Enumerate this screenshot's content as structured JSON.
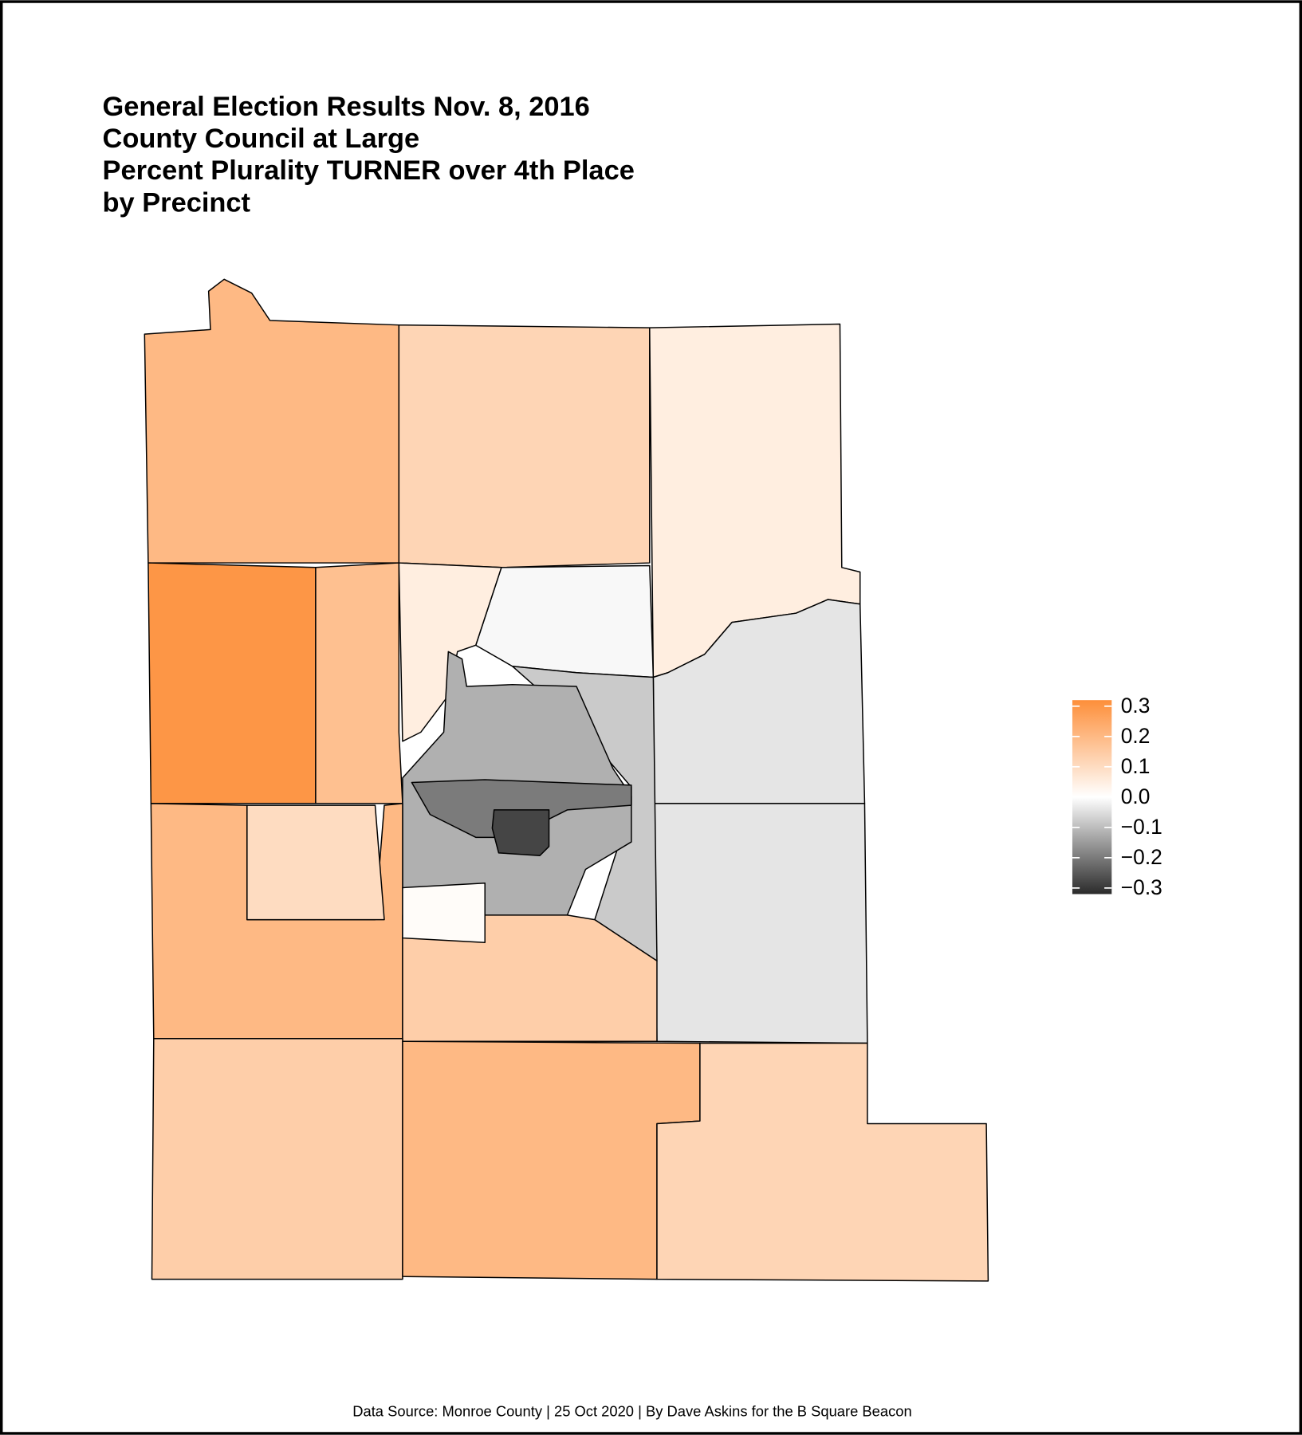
{
  "chart_data": {
    "type": "choropleth",
    "title": [
      "General Election Results Nov. 8, 2016",
      "County Council at Large",
      "Percent Plurality TURNER over 4th Place",
      "by Precinct"
    ],
    "caption": "Data Source: Monroe County | 25 Oct 2020 | By Dave Askins for the B Square Beacon",
    "values": [
      0.2,
      0.12,
      0.05,
      -0.04,
      -0.04,
      0.3,
      0.18,
      -0.01,
      0.05,
      -0.08,
      -0.12,
      -0.2,
      -0.28,
      0.2,
      0.1,
      0.14,
      0.01,
      0.14,
      0.2,
      0.12
    ],
    "color_low": "#2b2b2b",
    "color_mid": "#ffffff",
    "color_high": "#fd8f3a",
    "ylim": [
      -0.32,
      0.32
    ],
    "yticks": [
      0.3,
      0.2,
      0.1,
      {
        "value": 0,
        "label": "0.0"
      },
      {
        "value": -0.1,
        "label": "−0.1"
      },
      {
        "value": -0.2,
        "label": "−0.2"
      },
      {
        "value": -0.3,
        "label": "−0.3"
      }
    ]
  }
}
